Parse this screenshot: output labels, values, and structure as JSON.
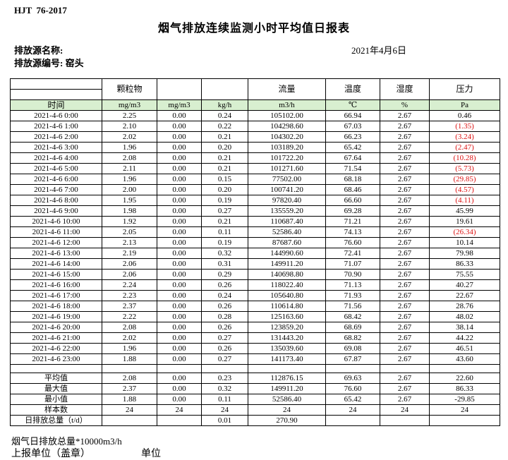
{
  "header": {
    "doc_code": "HJT  76-2017",
    "title": "烟气排放连续监测小时平均值日报表",
    "source_name_label": "排放源名称:",
    "source_id_label": "排放源编号: 窑头",
    "date": "2021年4月6日"
  },
  "table": {
    "group_headers": [
      "",
      "颗粒物",
      "",
      "",
      "流量",
      "温度",
      "湿度",
      "压力"
    ],
    "units_row": {
      "time_label": "时间",
      "units": [
        "mg/m3",
        "mg/m3",
        "kg/h",
        "m3/h",
        "℃",
        "%",
        "Pa"
      ]
    },
    "rows": [
      {
        "time": "2021-4-6 0:00",
        "values": [
          "2.25",
          "0.00",
          "0.24",
          "105102.00",
          "66.94",
          "2.67",
          "0.46"
        ]
      },
      {
        "time": "2021-4-6 1:00",
        "values": [
          "2.10",
          "0.00",
          "0.22",
          "104298.60",
          "67.03",
          "2.67",
          "(1.35)"
        ]
      },
      {
        "time": "2021-4-6 2:00",
        "values": [
          "2.02",
          "0.00",
          "0.21",
          "104302.20",
          "66.23",
          "2.67",
          "(3.24)"
        ]
      },
      {
        "time": "2021-4-6 3:00",
        "values": [
          "1.96",
          "0.00",
          "0.20",
          "103189.20",
          "65.42",
          "2.67",
          "(2.47)"
        ]
      },
      {
        "time": "2021-4-6 4:00",
        "values": [
          "2.08",
          "0.00",
          "0.21",
          "101722.20",
          "67.64",
          "2.67",
          "(10.28)"
        ]
      },
      {
        "time": "2021-4-6 5:00",
        "values": [
          "2.11",
          "0.00",
          "0.21",
          "101271.60",
          "71.54",
          "2.67",
          "(5.73)"
        ]
      },
      {
        "time": "2021-4-6 6:00",
        "values": [
          "1.96",
          "0.00",
          "0.15",
          "77502.00",
          "68.18",
          "2.67",
          "(29.85)"
        ]
      },
      {
        "time": "2021-4-6 7:00",
        "values": [
          "2.00",
          "0.00",
          "0.20",
          "100741.20",
          "68.46",
          "2.67",
          "(4.57)"
        ]
      },
      {
        "time": "2021-4-6 8:00",
        "values": [
          "1.95",
          "0.00",
          "0.19",
          "97820.40",
          "66.60",
          "2.67",
          "(4.11)"
        ]
      },
      {
        "time": "2021-4-6 9:00",
        "values": [
          "1.98",
          "0.00",
          "0.27",
          "135559.20",
          "69.28",
          "2.67",
          "45.99"
        ]
      },
      {
        "time": "2021-4-6 10:00",
        "values": [
          "1.92",
          "0.00",
          "0.21",
          "110687.40",
          "71.21",
          "2.67",
          "19.61"
        ]
      },
      {
        "time": "2021-4-6 11:00",
        "values": [
          "2.05",
          "0.00",
          "0.11",
          "52586.40",
          "74.13",
          "2.67",
          "(26.34)"
        ]
      },
      {
        "time": "2021-4-6 12:00",
        "values": [
          "2.13",
          "0.00",
          "0.19",
          "87687.60",
          "76.60",
          "2.67",
          "10.14"
        ]
      },
      {
        "time": "2021-4-6 13:00",
        "values": [
          "2.19",
          "0.00",
          "0.32",
          "144990.60",
          "72.41",
          "2.67",
          "79.98"
        ]
      },
      {
        "time": "2021-4-6 14:00",
        "values": [
          "2.06",
          "0.00",
          "0.31",
          "149911.20",
          "71.07",
          "2.67",
          "86.33"
        ]
      },
      {
        "time": "2021-4-6 15:00",
        "values": [
          "2.06",
          "0.00",
          "0.29",
          "140698.80",
          "70.90",
          "2.67",
          "75.55"
        ]
      },
      {
        "time": "2021-4-6 16:00",
        "values": [
          "2.24",
          "0.00",
          "0.26",
          "118022.40",
          "71.13",
          "2.67",
          "40.27"
        ]
      },
      {
        "time": "2021-4-6 17:00",
        "values": [
          "2.23",
          "0.00",
          "0.24",
          "105640.80",
          "71.93",
          "2.67",
          "22.67"
        ]
      },
      {
        "time": "2021-4-6 18:00",
        "values": [
          "2.37",
          "0.00",
          "0.26",
          "110614.80",
          "71.56",
          "2.67",
          "28.76"
        ]
      },
      {
        "time": "2021-4-6 19:00",
        "values": [
          "2.22",
          "0.00",
          "0.28",
          "125163.60",
          "68.42",
          "2.67",
          "48.02"
        ]
      },
      {
        "time": "2021-4-6 20:00",
        "values": [
          "2.08",
          "0.00",
          "0.26",
          "123859.20",
          "68.69",
          "2.67",
          "38.14"
        ]
      },
      {
        "time": "2021-4-6 21:00",
        "values": [
          "2.02",
          "0.00",
          "0.27",
          "131443.20",
          "68.82",
          "2.67",
          "44.22"
        ]
      },
      {
        "time": "2021-4-6 22:00",
        "values": [
          "1.96",
          "0.00",
          "0.26",
          "135039.60",
          "69.08",
          "2.67",
          "46.51"
        ]
      },
      {
        "time": "2021-4-6 23:00",
        "values": [
          "1.88",
          "0.00",
          "0.27",
          "141173.40",
          "67.87",
          "2.67",
          "43.60"
        ]
      }
    ],
    "summary_rows": [
      {
        "label": "平均值",
        "values": [
          "2.08",
          "0.00",
          "0.23",
          "112876.15",
          "69.63",
          "2.67",
          "22.60"
        ]
      },
      {
        "label": "最大值",
        "values": [
          "2.37",
          "0.00",
          "0.32",
          "149911.20",
          "76.60",
          "2.67",
          "86.33"
        ]
      },
      {
        "label": "最小值",
        "values": [
          "1.88",
          "0.00",
          "0.11",
          "52586.40",
          "65.42",
          "2.67",
          "-29.85"
        ]
      },
      {
        "label": "样本数",
        "values": [
          "24",
          "24",
          "24",
          "24",
          "24",
          "24",
          "24"
        ]
      },
      {
        "label": "日排放总量（t/d）",
        "values": [
          "",
          "",
          "0.01",
          "270.90",
          "",
          "",
          ""
        ]
      }
    ]
  },
  "footer": {
    "note": "烟气日排放总量*10000m3/h",
    "report_unit_label": "上报单位（盖章）",
    "unit_label": "单位"
  },
  "colors": {
    "header_green": "#d8efd0",
    "negative_red": "#dd1111"
  }
}
